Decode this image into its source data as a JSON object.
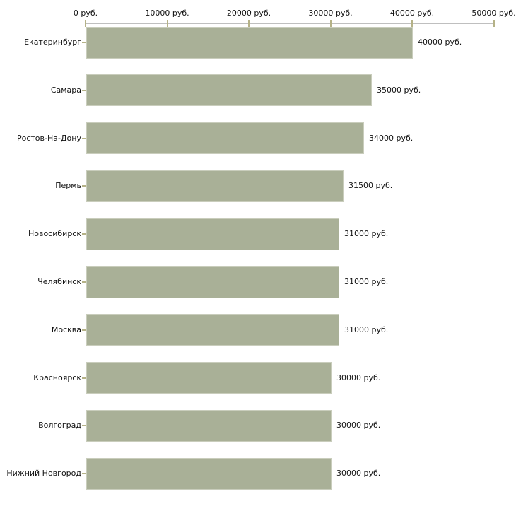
{
  "chart_data": {
    "type": "bar",
    "orientation": "horizontal",
    "title": "",
    "categories": [
      "Екатеринбург",
      "Самара",
      "Ростов-На-Дону",
      "Пермь",
      "Новосибирск",
      "Челябинск",
      "Москва",
      "Красноярск",
      "Волгоград",
      "Нижний Новгород"
    ],
    "values": [
      40000,
      35000,
      34000,
      31500,
      31000,
      31000,
      31000,
      30000,
      30000,
      30000
    ],
    "value_labels": [
      "40000 руб.",
      "35000 руб.",
      "34000 руб.",
      "31500 руб.",
      "31000 руб.",
      "31000 руб.",
      "31000 руб.",
      "30000 руб.",
      "30000 руб.",
      "30000 руб."
    ],
    "x_axis": {
      "position": "top",
      "min": 0,
      "max": 50000,
      "ticks": [
        0,
        10000,
        20000,
        30000,
        40000,
        50000
      ],
      "tick_labels": [
        "0 руб.",
        "10000 руб.",
        "20000 руб.",
        "30000 руб.",
        "40000 руб.",
        "50000 руб."
      ]
    },
    "grid": false,
    "legend": false,
    "colors": {
      "bar_fill": "#a9b097",
      "bar_border": "#c9cdbc",
      "axis_line": "#bfbfbf",
      "tick_mark": "#b5b287",
      "text": "#111111",
      "background": "#ffffff"
    }
  }
}
